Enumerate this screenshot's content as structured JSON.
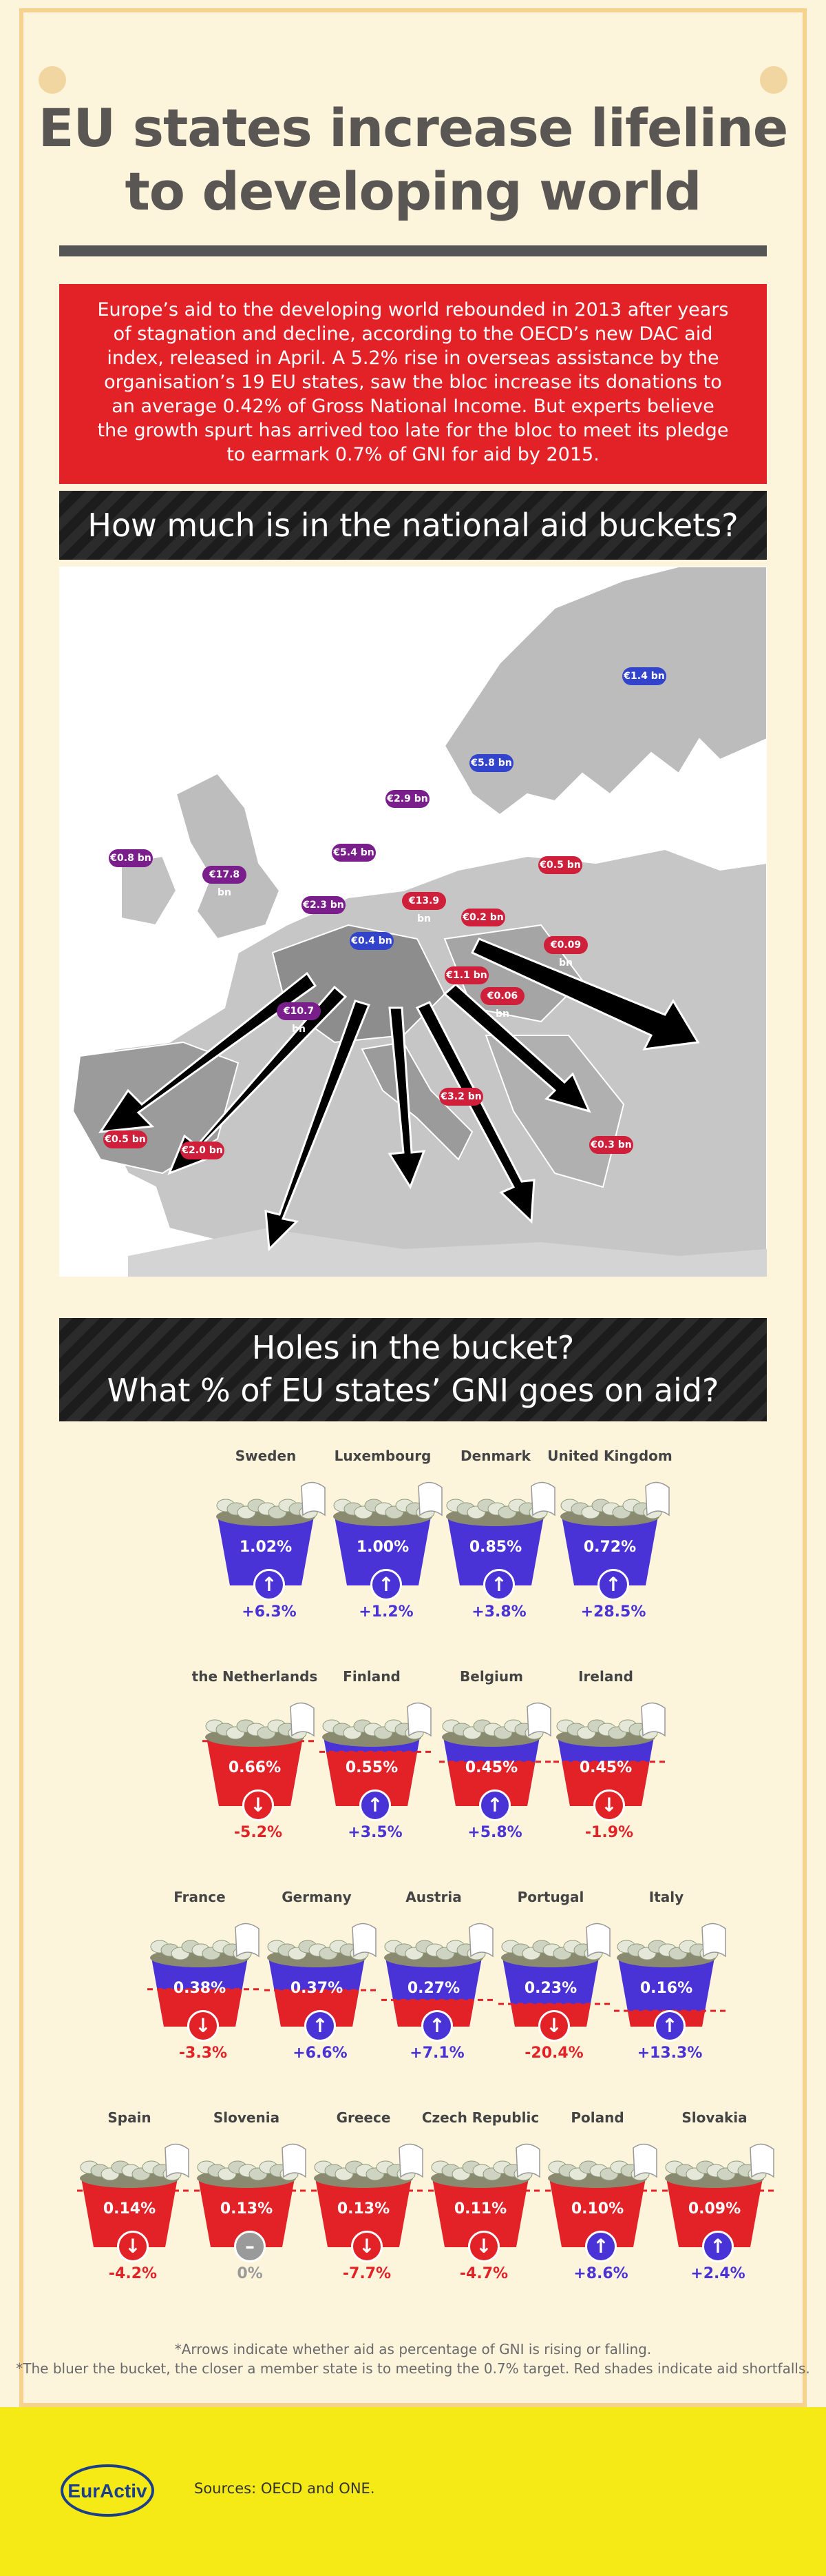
{
  "title": "EU states increase lifeline to developing world",
  "intro": "Europe’s aid to the developing world rebounded in 2013 after years of stagnation and decline, according to the OECD’s new DAC aid index, released in April. A 5.2% rise in overseas assistance by the organisation’s 19 EU states, saw the bloc increase its donations to an average 0.42% of Gross National Income. But experts believe the growth spurt has arrived too late for the bloc to meet its pledge to earmark 0.7% of GNI for aid by 2015.",
  "section1": "How much is in the national aid buckets?",
  "section2": {
    "line1": "Holes in the bucket?",
    "line2": "What % of EU states’ GNI goes on aid?"
  },
  "map_buckets": [
    {
      "country": "Finland",
      "amount": "€1.4 bn",
      "color": "blue"
    },
    {
      "country": "Sweden",
      "amount": "€5.8 bn",
      "color": "blue"
    },
    {
      "country": "Denmark",
      "amount": "€2.9 bn",
      "color": "purple"
    },
    {
      "country": "the Netherlands",
      "amount": "€5.4 bn",
      "color": "purple"
    },
    {
      "country": "Ireland",
      "amount": "€0.8 bn",
      "color": "purple"
    },
    {
      "country": "United Kingdom",
      "amount": "€17.8 bn",
      "color": "purple"
    },
    {
      "country": "Belgium",
      "amount": "€2.3 bn",
      "color": "purple"
    },
    {
      "country": "Luxembourg",
      "amount": "€0.4 bn",
      "color": "blue"
    },
    {
      "country": "Germany",
      "amount": "€13.9 bn",
      "color": "red"
    },
    {
      "country": "Czech Republic",
      "amount": "€0.2 bn",
      "color": "red"
    },
    {
      "country": "Poland",
      "amount": "€0.5 bn",
      "color": "red"
    },
    {
      "country": "Slovakia",
      "amount": "€0.09 bn",
      "color": "red"
    },
    {
      "country": "Austria",
      "amount": "€1.1 bn",
      "color": "red"
    },
    {
      "country": "Slovenia",
      "amount": "€0.06 bn",
      "color": "red"
    },
    {
      "country": "France",
      "amount": "€10.7 bn",
      "color": "purple"
    },
    {
      "country": "Italy",
      "amount": "€3.2 bn",
      "color": "red"
    },
    {
      "country": "Portugal",
      "amount": "€0.5 bn",
      "color": "red"
    },
    {
      "country": "Spain",
      "amount": "€2.0 bn",
      "color": "red"
    },
    {
      "country": "Greece",
      "amount": "€0.3 bn",
      "color": "red"
    }
  ],
  "rows": [
    [
      {
        "country": "Sweden",
        "pct": "1.02%",
        "change": "+6.3%",
        "dir": "up",
        "color": "blue"
      },
      {
        "country": "Luxembourg",
        "pct": "1.00%",
        "change": "+1.2%",
        "dir": "up",
        "color": "blue"
      },
      {
        "country": "Denmark",
        "pct": "0.85%",
        "change": "+3.8%",
        "dir": "up",
        "color": "blue"
      },
      {
        "country": "United Kingdom",
        "pct": "0.72%",
        "change": "+28.5%",
        "dir": "up",
        "color": "blue"
      }
    ],
    [
      {
        "country": "the Netherlands",
        "pct": "0.66%",
        "change": "-5.2%",
        "dir": "down",
        "color": "mix"
      },
      {
        "country": "Finland",
        "pct": "0.55%",
        "change": "+3.5%",
        "dir": "up",
        "color": "mix"
      },
      {
        "country": "Belgium",
        "pct": "0.45%",
        "change": "+5.8%",
        "dir": "up",
        "color": "mix"
      },
      {
        "country": "Ireland",
        "pct": "0.45%",
        "change": "-1.9%",
        "dir": "down",
        "color": "mix"
      }
    ],
    [
      {
        "country": "France",
        "pct": "0.38%",
        "change": "-3.3%",
        "dir": "down",
        "color": "mix"
      },
      {
        "country": "Germany",
        "pct": "0.37%",
        "change": "+6.6%",
        "dir": "up",
        "color": "mix"
      },
      {
        "country": "Austria",
        "pct": "0.27%",
        "change": "+7.1%",
        "dir": "up",
        "color": "mix"
      },
      {
        "country": "Portugal",
        "pct": "0.23%",
        "change": "-20.4%",
        "dir": "down",
        "color": "mix"
      },
      {
        "country": "Italy",
        "pct": "0.16%",
        "change": "+13.3%",
        "dir": "up",
        "color": "mix"
      }
    ],
    [
      {
        "country": "Spain",
        "pct": "0.14%",
        "change": "-4.2%",
        "dir": "down",
        "color": "red"
      },
      {
        "country": "Slovenia",
        "pct": "0.13%",
        "change": "0%",
        "dir": "flat",
        "color": "red"
      },
      {
        "country": "Greece",
        "pct": "0.13%",
        "change": "-7.7%",
        "dir": "down",
        "color": "red"
      },
      {
        "country": "Czech Republic",
        "pct": "0.11%",
        "change": "-4.7%",
        "dir": "down",
        "color": "red"
      },
      {
        "country": "Poland",
        "pct": "0.10%",
        "change": "+8.6%",
        "dir": "up",
        "color": "red"
      },
      {
        "country": "Slovakia",
        "pct": "0.09%",
        "change": "+2.4%",
        "dir": "up",
        "color": "red"
      }
    ]
  ],
  "footnote1": "*Arrows indicate whether aid as percentage of GNI is rising or falling.",
  "footnote2": "*The bluer the bucket, the closer a member state is to meeting the 0.7% target. Red shades indicate aid shortfalls.",
  "footer": {
    "logo_text": "EurActiv",
    "sources": "Sources: OECD and ONE."
  },
  "colors": {
    "red": "#e32228",
    "blue": "#4a33d6",
    "purple": "#7a1e8c",
    "up_text": "#4a33d6",
    "down_text": "#e32228"
  }
}
